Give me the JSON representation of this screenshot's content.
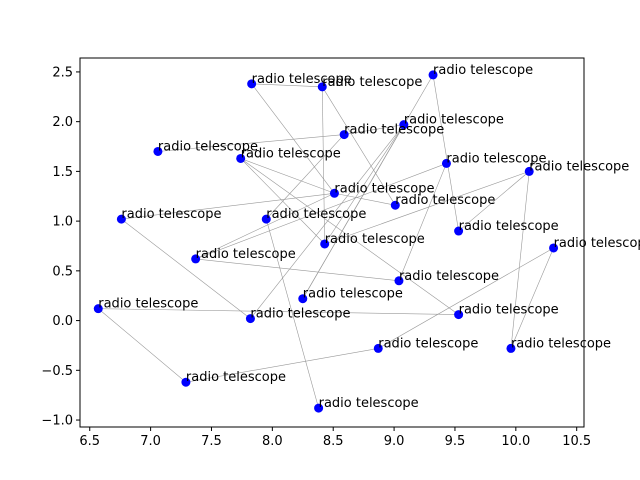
{
  "chart_data": {
    "type": "scatter",
    "title": "",
    "xlabel": "",
    "ylabel": "",
    "xlim": [
      6.42,
      10.56
    ],
    "ylim": [
      -1.07,
      2.64
    ],
    "xticks": [
      6.5,
      7.0,
      7.5,
      8.0,
      8.5,
      9.0,
      9.5,
      10.0,
      10.5
    ],
    "yticks": [
      -1.0,
      -0.5,
      0.0,
      0.5,
      1.0,
      1.5,
      2.0,
      2.5
    ],
    "xtick_labels": [
      "6.5",
      "7.0",
      "7.5",
      "8.0",
      "8.5",
      "9.0",
      "9.5",
      "10.0",
      "10.5"
    ],
    "ytick_labels": [
      "−1.0",
      "−0.5",
      "0.0",
      "0.5",
      "1.0",
      "1.5",
      "2.0",
      "2.5"
    ],
    "point_color": "#0000ff",
    "edge_color": "#999999",
    "points": [
      {
        "x": 7.83,
        "y": 2.38,
        "label": "radio telescope"
      },
      {
        "x": 8.41,
        "y": 2.35,
        "label": "radio telescope"
      },
      {
        "x": 9.32,
        "y": 2.47,
        "label": "radio telescope"
      },
      {
        "x": 9.08,
        "y": 1.97,
        "label": "radio telescope"
      },
      {
        "x": 8.59,
        "y": 1.87,
        "label": "radio telescope"
      },
      {
        "x": 7.06,
        "y": 1.7,
        "label": "radio telescope"
      },
      {
        "x": 7.74,
        "y": 1.63,
        "label": "radio telescope"
      },
      {
        "x": 9.43,
        "y": 1.58,
        "label": "radio telescope"
      },
      {
        "x": 10.11,
        "y": 1.5,
        "label": "radio telescope"
      },
      {
        "x": 8.51,
        "y": 1.28,
        "label": "radio telescope"
      },
      {
        "x": 9.01,
        "y": 1.16,
        "label": "radio telescope"
      },
      {
        "x": 6.76,
        "y": 1.02,
        "label": "radio telescope"
      },
      {
        "x": 7.95,
        "y": 1.02,
        "label": "radio telescope"
      },
      {
        "x": 9.53,
        "y": 0.9,
        "label": "radio telescope"
      },
      {
        "x": 8.43,
        "y": 0.77,
        "label": "radio telescope"
      },
      {
        "x": 10.31,
        "y": 0.73,
        "label": "radio telescope"
      },
      {
        "x": 7.37,
        "y": 0.62,
        "label": "radio telescope"
      },
      {
        "x": 9.04,
        "y": 0.4,
        "label": "radio telescope"
      },
      {
        "x": 8.25,
        "y": 0.22,
        "label": "radio telescope"
      },
      {
        "x": 6.57,
        "y": 0.12,
        "label": "radio telescope"
      },
      {
        "x": 9.53,
        "y": 0.06,
        "label": "radio telescope"
      },
      {
        "x": 7.82,
        "y": 0.02,
        "label": "radio telescope"
      },
      {
        "x": 8.87,
        "y": -0.28,
        "label": "radio telescope"
      },
      {
        "x": 9.96,
        "y": -0.28,
        "label": "radio telescope"
      },
      {
        "x": 7.29,
        "y": -0.62,
        "label": "radio telescope"
      },
      {
        "x": 8.38,
        "y": -0.88,
        "label": "radio telescope"
      }
    ],
    "edges": [
      [
        0,
        9
      ],
      [
        0,
        1
      ],
      [
        1,
        14
      ],
      [
        1,
        10
      ],
      [
        2,
        18
      ],
      [
        2,
        13
      ],
      [
        3,
        18
      ],
      [
        3,
        4
      ],
      [
        3,
        14
      ],
      [
        3,
        21
      ],
      [
        4,
        5
      ],
      [
        4,
        12
      ],
      [
        6,
        9
      ],
      [
        6,
        20
      ],
      [
        6,
        14
      ],
      [
        7,
        16
      ],
      [
        7,
        17
      ],
      [
        8,
        13
      ],
      [
        8,
        23
      ],
      [
        8,
        14
      ],
      [
        9,
        16
      ],
      [
        9,
        10
      ],
      [
        9,
        11
      ],
      [
        11,
        21
      ],
      [
        12,
        25
      ],
      [
        15,
        22
      ],
      [
        15,
        23
      ],
      [
        16,
        17
      ],
      [
        19,
        20
      ],
      [
        19,
        24
      ],
      [
        22,
        24
      ]
    ]
  }
}
